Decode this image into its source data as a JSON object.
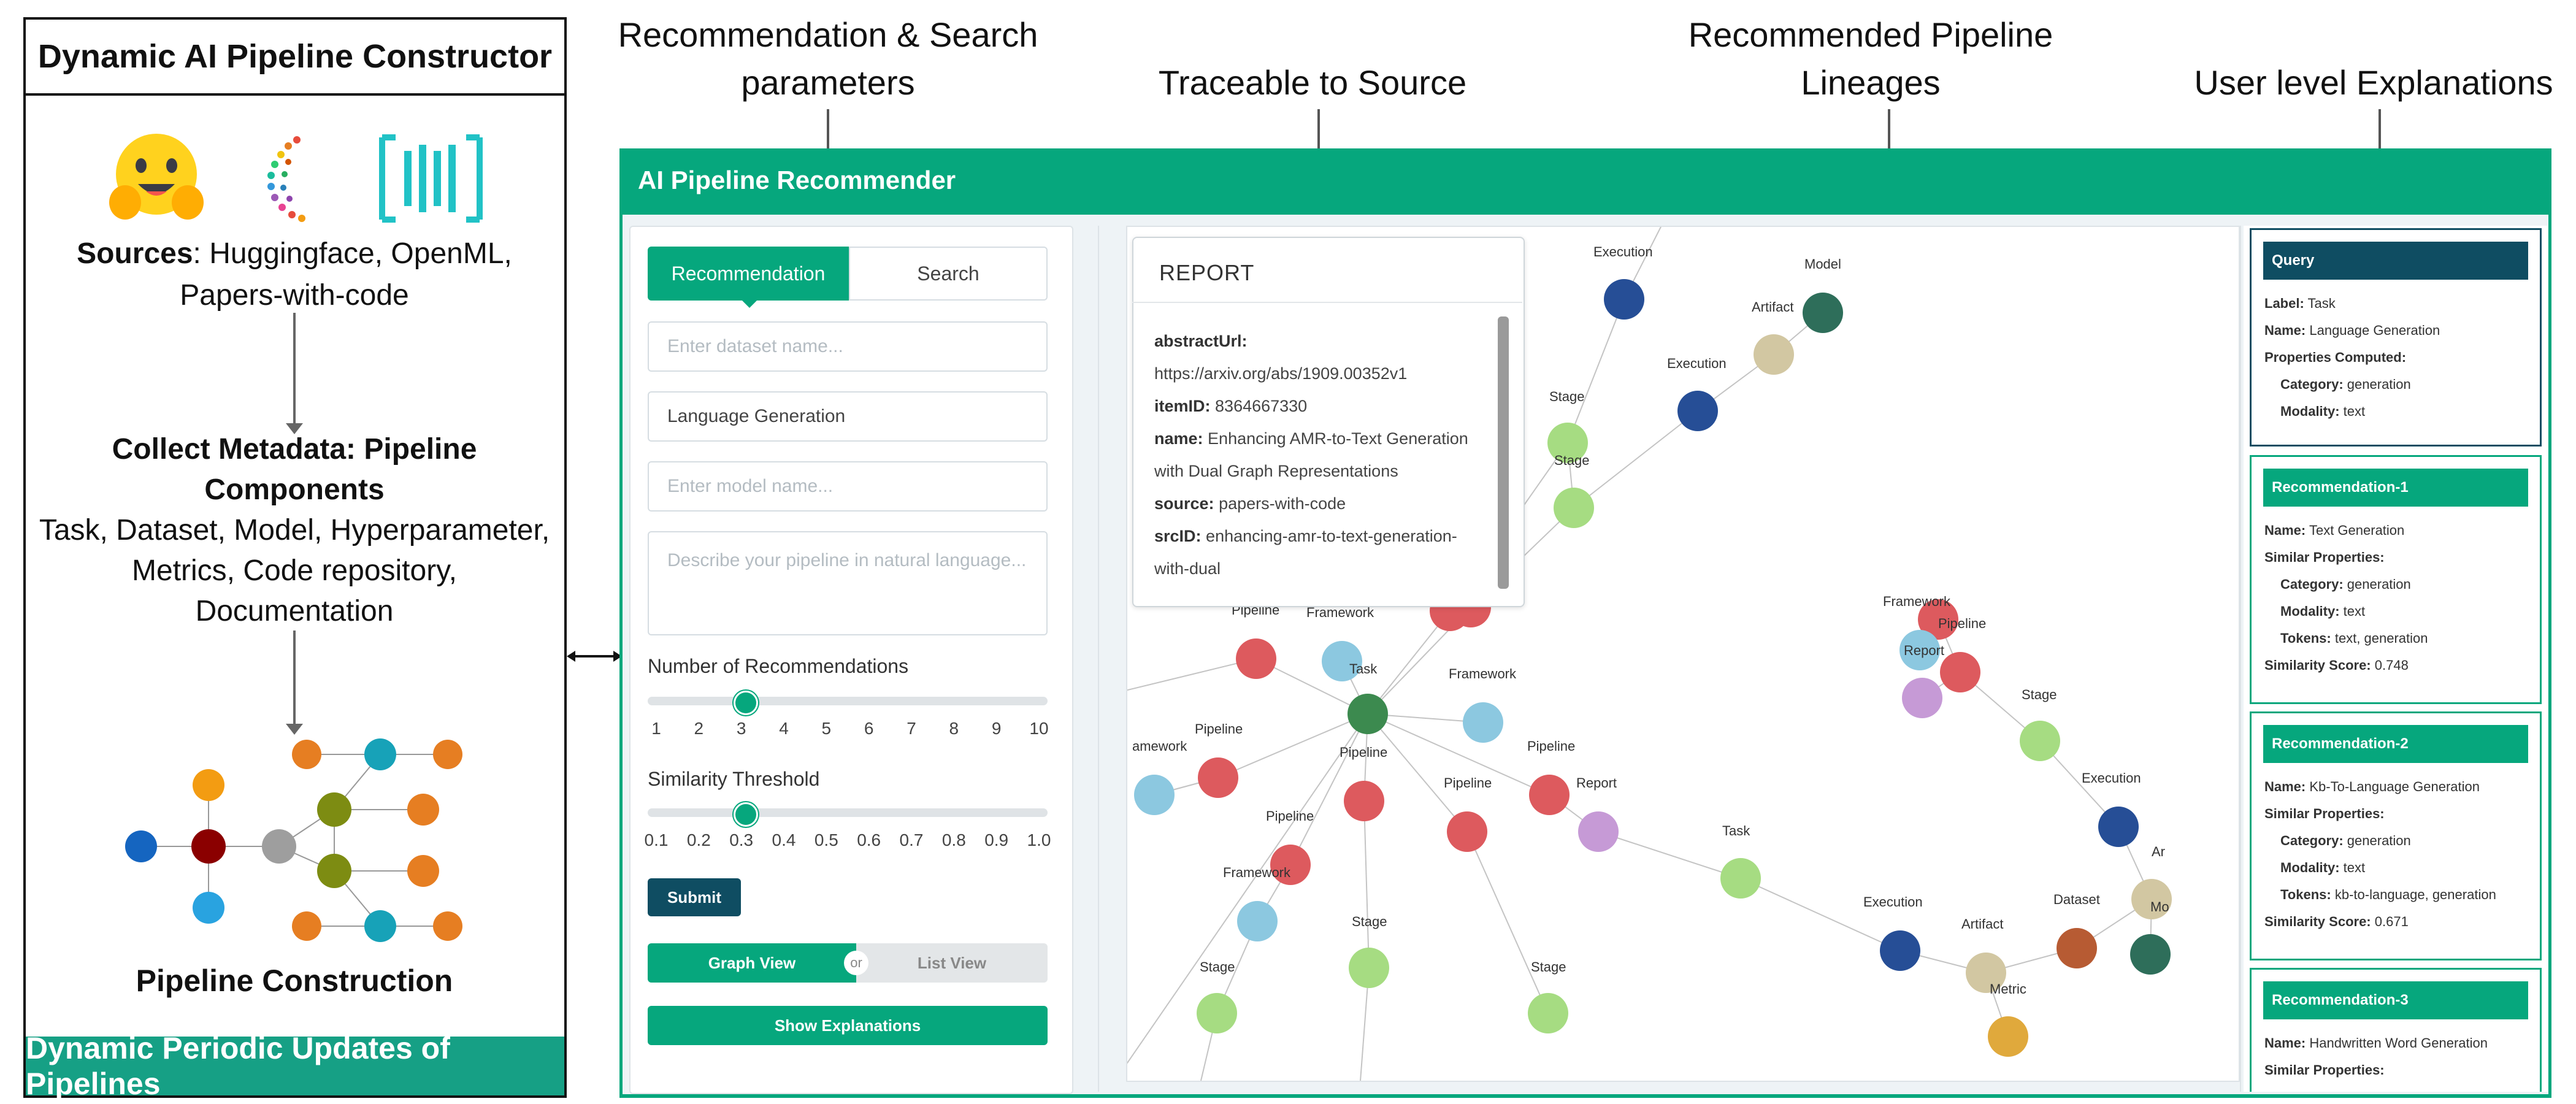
{
  "left_panel": {
    "title": "Dynamic AI Pipeline Constructor",
    "sources_bold": "Sources",
    "sources_text": ": Huggingface, OpenML, Papers-with-code",
    "collect_bold": "Collect Metadata: Pipeline Components",
    "collect_text": "Task, Dataset, Model, Hyperparameter, Metrics, Code repository, Documentation",
    "construction_label": "Pipeline Construction",
    "banner": "Dynamic Periodic Updates of Pipelines"
  },
  "annotations": {
    "recommendation_search": "Recommendation & Search parameters",
    "traceable": "Traceable to Source",
    "lineages": "Recommended Pipeline Lineages",
    "explanations": "User level Explanations"
  },
  "app": {
    "title": "AI Pipeline Recommender",
    "tabs": [
      "Recommendation",
      "Search"
    ],
    "inputs": {
      "dataset_placeholder": "Enter dataset name...",
      "task_value": "Language Generation",
      "model_placeholder": "Enter model name...",
      "nl_placeholder": "Describe your pipeline in natural language..."
    },
    "num_recs": {
      "label": "Number of Recommendations",
      "ticks": [
        "1",
        "2",
        "3",
        "4",
        "5",
        "6",
        "7",
        "8",
        "9",
        "10"
      ],
      "value": 3
    },
    "similarity": {
      "label": "Similarity Threshold",
      "ticks": [
        "0.1",
        "0.2",
        "0.3",
        "0.4",
        "0.5",
        "0.6",
        "0.7",
        "0.8",
        "0.9",
        "1.0"
      ],
      "value": 0.3
    },
    "submit": "Submit",
    "view_toggle": {
      "graph": "Graph View",
      "or": "or",
      "list": "List View"
    },
    "show_explanations": "Show Explanations"
  },
  "report": {
    "title": "REPORT",
    "fields": [
      {
        "key": "abstractUrl:",
        "value": ""
      },
      {
        "key": "",
        "value": "https://arxiv.org/abs/1909.00352v1"
      },
      {
        "key": "itemID:",
        "value": "8364667330"
      },
      {
        "key": "name:",
        "value": "Enhancing AMR-to-Text Generation"
      },
      {
        "key": "",
        "value": "with Dual Graph Representations"
      },
      {
        "key": "source:",
        "value": "papers-with-code"
      },
      {
        "key": "srcID:",
        "value": "enhancing-amr-to-text-generation-"
      },
      {
        "key": "",
        "value": "with-dual"
      }
    ]
  },
  "graph": {
    "node_labels": [
      "Execution",
      "Model",
      "Artifact",
      "Execution",
      "Stage",
      "Stage",
      "Pipeline",
      "Framework",
      "Task",
      "Framework",
      "Pipeline",
      "Pipeline",
      "Pipeline",
      "Pipeline",
      "Report",
      "amework",
      "Pipeline",
      "Framework",
      "Stage",
      "Stage",
      "Stage",
      "Task",
      "Framework",
      "Pipeline",
      "Report",
      "Stage",
      "Execution",
      "Execution",
      "Artifact",
      "Dataset",
      "Metric",
      "Ar",
      "Mo"
    ],
    "colors": {
      "task": "#3c8a4f",
      "pipeline": "#dd5a5e",
      "framework": "#8cc8e0",
      "stage": "#a6dc82",
      "execution": "#264e96",
      "model": "#2e6e5a",
      "artifact": "#d2c7a2",
      "report": "#c69ad6",
      "dataset": "#b75b33",
      "metric": "#e0a93c"
    }
  },
  "explanations": {
    "query": {
      "header": "Query",
      "lines": [
        {
          "k": "Label:",
          "v": "Task"
        },
        {
          "k": "Name:",
          "v": "Language Generation"
        },
        {
          "k": "Properties Computed:",
          "v": ""
        },
        {
          "k": "Category:",
          "v": "generation"
        },
        {
          "k": "Modality:",
          "v": "text"
        }
      ]
    },
    "rec1": {
      "header": "Recommendation-1",
      "lines": [
        {
          "k": "Name:",
          "v": "Text Generation"
        },
        {
          "k": "Similar Properties:",
          "v": ""
        },
        {
          "k": "Category:",
          "v": "generation"
        },
        {
          "k": "Modality:",
          "v": "text"
        },
        {
          "k": "Tokens:",
          "v": "text, generation"
        },
        {
          "k": "Similarity Score:",
          "v": "0.748"
        }
      ]
    },
    "rec2": {
      "header": "Recommendation-2",
      "lines": [
        {
          "k": "Name:",
          "v": "Kb-To-Language Generation"
        },
        {
          "k": "Similar Properties:",
          "v": ""
        },
        {
          "k": "Category:",
          "v": "generation"
        },
        {
          "k": "Modality:",
          "v": "text"
        },
        {
          "k": "Tokens:",
          "v": "kb-to-language, generation"
        },
        {
          "k": "Similarity Score:",
          "v": "0.671"
        }
      ]
    },
    "rec3": {
      "header": "Recommendation-3",
      "lines": [
        {
          "k": "Name:",
          "v": "Handwritten Word Generation"
        },
        {
          "k": "Similar Properties:",
          "v": ""
        }
      ]
    }
  }
}
